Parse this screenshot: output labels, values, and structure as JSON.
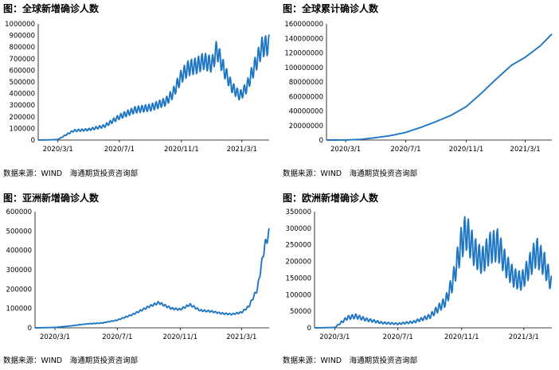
{
  "charts": [
    {
      "title": "图：全球新增确诊人数",
      "source": "数据来源：WIND　海通期货投资咨询部"
    },
    {
      "title": "图：全球累计确诊人数",
      "source": "数据来源：WIND　海通期货投资咨询部"
    },
    {
      "title": "图：亚洲新增确诊人数",
      "source": "数据来源：WIND　海通期货投资咨询部"
    },
    {
      "title": "图：欧洲新增确诊人数",
      "source": "数据来源：WIND　海通期货投资咨询部"
    }
  ],
  "chart_data": [
    {
      "type": "line",
      "title": "图：全球新增确诊人数",
      "color": "#1f77c4",
      "xlim": [
        "2020-01-22",
        "2021-04-24"
      ],
      "ylim": [
        0,
        1000000
      ],
      "yticks": [
        0,
        100000,
        200000,
        300000,
        400000,
        500000,
        600000,
        700000,
        800000,
        900000,
        1000000
      ],
      "xticks": [
        "2020/3/1",
        "2020/7/1",
        "2020/11/1",
        "2021/3/1"
      ],
      "weekly_amplitude": 0.11,
      "series": [
        {
          "x": [
            "2020-01-22",
            "2020-02-15",
            "2020-03-01",
            "2020-03-15",
            "2020-04-01",
            "2020-05-01",
            "2020-06-01",
            "2020-07-01",
            "2020-08-01",
            "2020-09-01",
            "2020-10-01",
            "2020-10-15",
            "2020-11-01",
            "2020-11-15",
            "2020-12-01",
            "2020-12-15",
            "2021-01-01",
            "2021-01-10",
            "2021-01-25",
            "2021-02-10",
            "2021-02-25",
            "2021-03-10",
            "2021-03-25",
            "2021-04-10",
            "2021-04-24"
          ],
          "values": [
            0,
            2000,
            5000,
            40000,
            80000,
            90000,
            120000,
            200000,
            260000,
            280000,
            330000,
            400000,
            550000,
            620000,
            640000,
            680000,
            650000,
            780000,
            600000,
            450000,
            380000,
            450000,
            620000,
            800000,
            820000
          ]
        }
      ]
    },
    {
      "type": "line",
      "title": "图：全球累计确诊人数",
      "color": "#1f77c4",
      "xlim": [
        "2020-01-22",
        "2021-04-24"
      ],
      "ylim": [
        0,
        160000000
      ],
      "yticks": [
        0,
        20000000,
        40000000,
        60000000,
        80000000,
        100000000,
        120000000,
        140000000,
        160000000
      ],
      "xticks": [
        "2020/3/1",
        "2020/7/1",
        "2020/11/1",
        "2021/3/1"
      ],
      "weekly_amplitude": 0,
      "series": [
        {
          "x": [
            "2020-01-22",
            "2020-03-01",
            "2020-04-01",
            "2020-05-01",
            "2020-06-01",
            "2020-07-01",
            "2020-08-01",
            "2020-09-01",
            "2020-10-01",
            "2020-11-01",
            "2020-12-01",
            "2021-01-01",
            "2021-02-01",
            "2021-03-01",
            "2021-04-01",
            "2021-04-24"
          ],
          "values": [
            0,
            90000,
            900000,
            3300000,
            6200000,
            10500000,
            17500000,
            25500000,
            34000000,
            46000000,
            64000000,
            84000000,
            103000000,
            114000000,
            130000000,
            146000000
          ]
        }
      ]
    },
    {
      "type": "line",
      "title": "图：亚洲新增确诊人数",
      "color": "#1f77c4",
      "xlim": [
        "2020-01-22",
        "2021-04-24"
      ],
      "ylim": [
        0,
        600000
      ],
      "yticks": [
        0,
        100000,
        200000,
        300000,
        400000,
        500000,
        600000
      ],
      "xticks": [
        "2020/3/1",
        "2020/7/1",
        "2020/11/1",
        "2021/3/1"
      ],
      "weekly_amplitude": 0.05,
      "series": [
        {
          "x": [
            "2020-01-22",
            "2020-03-01",
            "2020-04-01",
            "2020-05-01",
            "2020-06-01",
            "2020-07-01",
            "2020-08-01",
            "2020-09-01",
            "2020-09-20",
            "2020-10-15",
            "2020-11-01",
            "2020-11-20",
            "2020-12-10",
            "2021-01-01",
            "2021-01-20",
            "2021-02-10",
            "2021-03-01",
            "2021-03-15",
            "2021-04-01",
            "2021-04-15",
            "2021-04-24"
          ],
          "values": [
            0,
            2000,
            10000,
            20000,
            25000,
            40000,
            70000,
            110000,
            130000,
            100000,
            95000,
            120000,
            90000,
            85000,
            75000,
            70000,
            80000,
            110000,
            200000,
            420000,
            490000
          ]
        }
      ]
    },
    {
      "type": "line",
      "title": "图：欧洲新增确诊人数",
      "color": "#1f77c4",
      "xlim": [
        "2020-01-22",
        "2021-04-24"
      ],
      "ylim": [
        0,
        350000
      ],
      "yticks": [
        0,
        50000,
        100000,
        150000,
        200000,
        250000,
        300000,
        350000
      ],
      "xticks": [
        "2020/3/1",
        "2020/7/1",
        "2020/11/1",
        "2021/3/1"
      ],
      "weekly_amplitude": 0.2,
      "series": [
        {
          "x": [
            "2020-01-22",
            "2020-03-01",
            "2020-03-25",
            "2020-04-10",
            "2020-05-01",
            "2020-06-01",
            "2020-07-01",
            "2020-08-01",
            "2020-09-01",
            "2020-10-01",
            "2020-10-15",
            "2020-11-01",
            "2020-11-10",
            "2020-11-25",
            "2020-12-10",
            "2020-12-25",
            "2021-01-10",
            "2021-01-25",
            "2021-02-10",
            "2021-02-25",
            "2021-03-10",
            "2021-03-25",
            "2021-04-10",
            "2021-04-24"
          ],
          "values": [
            0,
            1000,
            30000,
            35000,
            25000,
            15000,
            12000,
            18000,
            35000,
            80000,
            140000,
            260000,
            290000,
            230000,
            200000,
            240000,
            250000,
            190000,
            150000,
            140000,
            180000,
            230000,
            190000,
            130000
          ]
        }
      ]
    }
  ]
}
